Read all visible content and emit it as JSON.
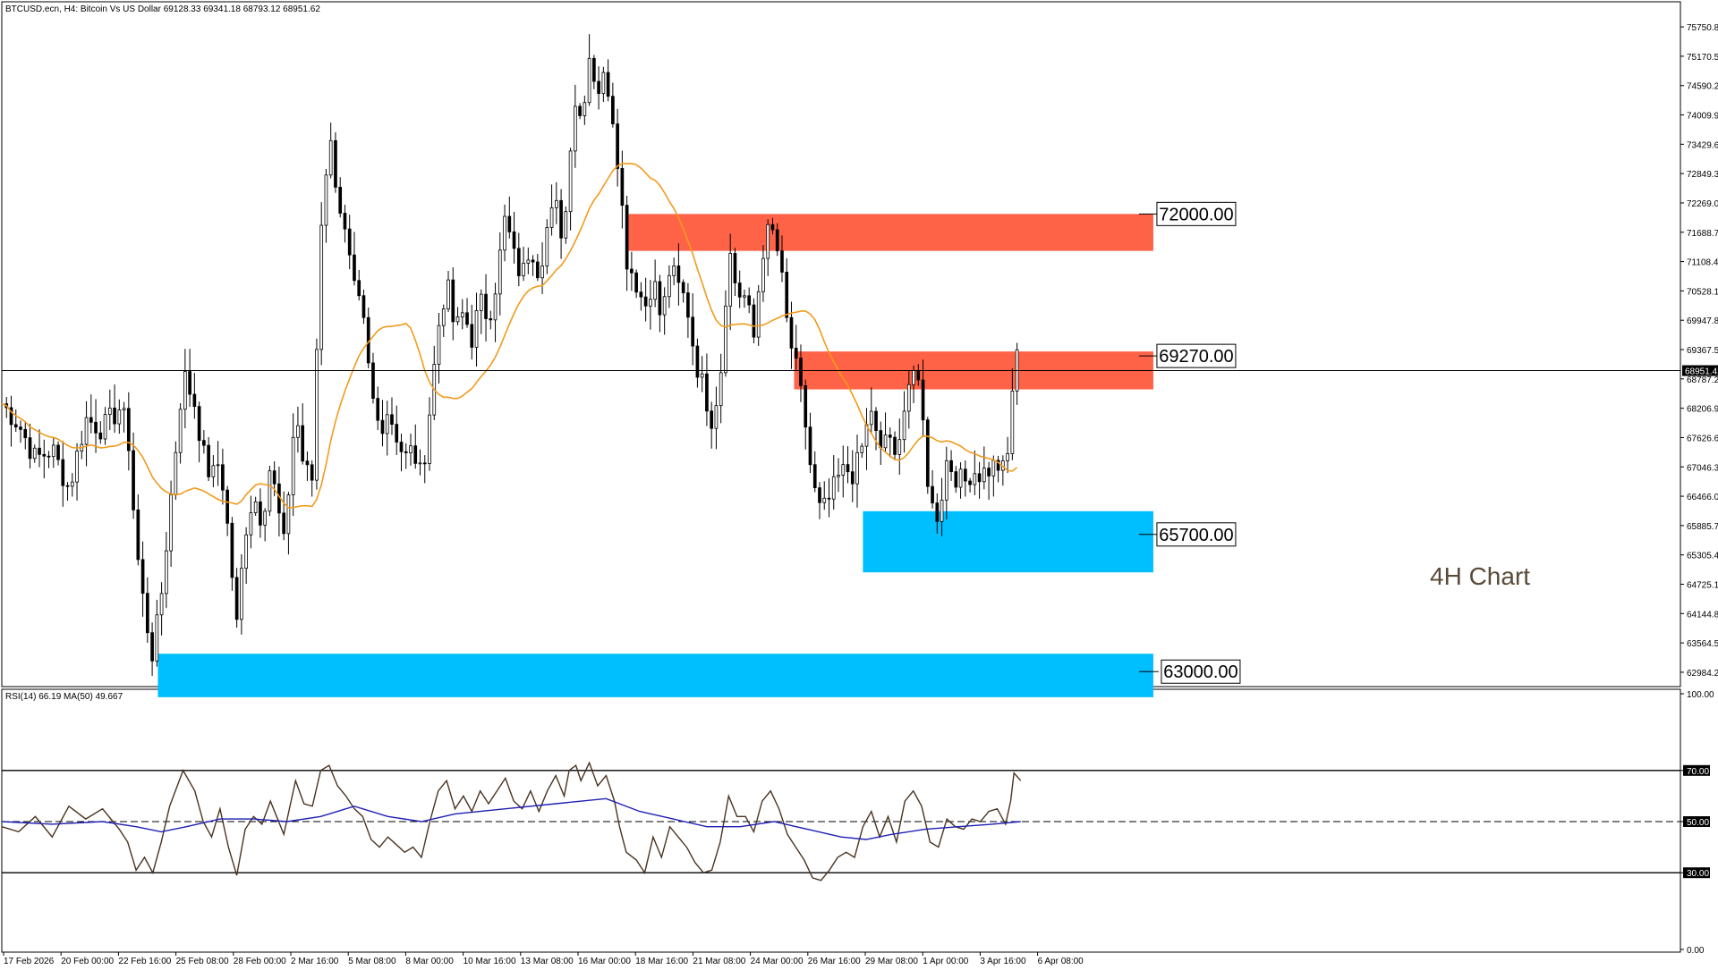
{
  "header": {
    "text": "BTCUSD.ecn, H4:  Bitcoin Vs US Dollar  69128.33 69341.18 68793.12 68951.62"
  },
  "chart_label": "4H Chart",
  "chart_data": [
    {
      "type": "candlestick",
      "symbol": "BTCUSD.ecn",
      "timeframe": "H4",
      "ylim": [
        62700,
        76000
      ],
      "current_price": "68951.42",
      "price_ticks": [
        "75750.80",
        "75170.50",
        "74590.20",
        "74009.90",
        "73429.60",
        "72849.30",
        "72269.00",
        "71688.70",
        "71108.40",
        "70528.10",
        "69947.80",
        "69367.50",
        "68787.20",
        "68206.90",
        "67626.60",
        "67046.30",
        "66466.00",
        "65885.70",
        "65305.40",
        "64725.10",
        "64144.80",
        "63564.50",
        "62984.20"
      ],
      "time_ticks": [
        "17 Feb 2026",
        "20 Feb 00:00",
        "22 Feb 16:00",
        "25 Feb 08:00",
        "28 Feb 00:00",
        "2 Mar 16:00",
        "5 Mar 08:00",
        "8 Mar 00:00",
        "10 Mar 16:00",
        "13 Mar 08:00",
        "16 Mar 00:00",
        "18 Mar 16:00",
        "21 Mar 08:00",
        "24 Mar 00:00",
        "26 Mar 16:00",
        "29 Mar 08:00",
        "1 Apr 00:00",
        "3 Apr 16:00",
        "6 Apr 08:00"
      ],
      "zones": [
        {
          "label": "72000.00",
          "kind": "resistance",
          "color": "#ff6347",
          "top": 72050,
          "bottom": 71320,
          "start": 0.372,
          "end": 0.686
        },
        {
          "label": "69270.00",
          "kind": "resistance",
          "color": "#ff6347",
          "top": 69330,
          "bottom": 68580,
          "start": 0.472,
          "end": 0.686
        },
        {
          "label": "65700.00",
          "kind": "support",
          "color": "#00bfff",
          "top": 66170,
          "bottom": 64960,
          "start": 0.513,
          "end": 0.686
        },
        {
          "label": "63000.00",
          "kind": "support",
          "color": "#00bfff",
          "top": 63350,
          "bottom": 62490,
          "start": 0.093,
          "end": 0.686
        }
      ],
      "close_path": [
        [
          0.0,
          68300
        ],
        [
          0.01,
          67900
        ],
        [
          0.02,
          67200
        ],
        [
          0.03,
          67400
        ],
        [
          0.04,
          66600
        ],
        [
          0.05,
          68000
        ],
        [
          0.06,
          67800
        ],
        [
          0.07,
          68200
        ],
        [
          0.075,
          67800
        ],
        [
          0.08,
          65500
        ],
        [
          0.085,
          64200
        ],
        [
          0.09,
          63300
        ],
        [
          0.095,
          64500
        ],
        [
          0.1,
          66200
        ],
        [
          0.108,
          68900
        ],
        [
          0.115,
          68300
        ],
        [
          0.12,
          67300
        ],
        [
          0.125,
          66800
        ],
        [
          0.13,
          67200
        ],
        [
          0.135,
          65700
        ],
        [
          0.14,
          63900
        ],
        [
          0.145,
          65800
        ],
        [
          0.15,
          66500
        ],
        [
          0.155,
          66000
        ],
        [
          0.16,
          67100
        ],
        [
          0.168,
          65500
        ],
        [
          0.175,
          68200
        ],
        [
          0.18,
          67000
        ],
        [
          0.185,
          66800
        ],
        [
          0.19,
          71800
        ],
        [
          0.195,
          73600
        ],
        [
          0.2,
          72500
        ],
        [
          0.205,
          71500
        ],
        [
          0.21,
          70500
        ],
        [
          0.215,
          70000
        ],
        [
          0.22,
          68500
        ],
        [
          0.225,
          67800
        ],
        [
          0.23,
          68200
        ],
        [
          0.235,
          67700
        ],
        [
          0.24,
          67200
        ],
        [
          0.245,
          67400
        ],
        [
          0.25,
          66800
        ],
        [
          0.255,
          68200
        ],
        [
          0.26,
          69800
        ],
        [
          0.265,
          70700
        ],
        [
          0.27,
          69700
        ],
        [
          0.275,
          70100
        ],
        [
          0.28,
          69600
        ],
        [
          0.285,
          70300
        ],
        [
          0.29,
          70000
        ],
        [
          0.295,
          70800
        ],
        [
          0.3,
          72000
        ],
        [
          0.305,
          71200
        ],
        [
          0.31,
          70800
        ],
        [
          0.315,
          71500
        ],
        [
          0.32,
          70900
        ],
        [
          0.325,
          71800
        ],
        [
          0.33,
          72200
        ],
        [
          0.335,
          71500
        ],
        [
          0.338,
          73300
        ],
        [
          0.342,
          74400
        ],
        [
          0.345,
          73900
        ],
        [
          0.35,
          75200
        ],
        [
          0.355,
          74500
        ],
        [
          0.36,
          74800
        ],
        [
          0.365,
          73800
        ],
        [
          0.368,
          72800
        ],
        [
          0.372,
          71200
        ],
        [
          0.378,
          70700
        ],
        [
          0.383,
          70200
        ],
        [
          0.388,
          70800
        ],
        [
          0.393,
          69900
        ],
        [
          0.398,
          71000
        ],
        [
          0.403,
          70600
        ],
        [
          0.408,
          70300
        ],
        [
          0.413,
          69200
        ],
        [
          0.418,
          68600
        ],
        [
          0.423,
          68000
        ],
        [
          0.428,
          68800
        ],
        [
          0.433,
          71400
        ],
        [
          0.438,
          70500
        ],
        [
          0.443,
          70400
        ],
        [
          0.448,
          69600
        ],
        [
          0.453,
          71300
        ],
        [
          0.458,
          71800
        ],
        [
          0.463,
          71200
        ],
        [
          0.468,
          69800
        ],
        [
          0.473,
          69000
        ],
        [
          0.478,
          68100
        ],
        [
          0.483,
          66700
        ],
        [
          0.488,
          66100
        ],
        [
          0.493,
          66400
        ],
        [
          0.498,
          66800
        ],
        [
          0.503,
          67000
        ],
        [
          0.508,
          66900
        ],
        [
          0.513,
          67500
        ],
        [
          0.518,
          68200
        ],
        [
          0.523,
          67200
        ],
        [
          0.528,
          67900
        ],
        [
          0.533,
          66900
        ],
        [
          0.538,
          68500
        ],
        [
          0.543,
          69000
        ],
        [
          0.548,
          68200
        ],
        [
          0.553,
          66300
        ],
        [
          0.558,
          66100
        ],
        [
          0.563,
          67200
        ],
        [
          0.568,
          66900
        ],
        [
          0.573,
          66700
        ],
        [
          0.578,
          67000
        ],
        [
          0.583,
          66900
        ],
        [
          0.588,
          67000
        ],
        [
          0.593,
          67100
        ],
        [
          0.598,
          66900
        ],
        [
          0.601,
          67800
        ],
        [
          0.603,
          69400
        ],
        [
          0.607,
          68950
        ]
      ],
      "moving_average": "MA(20)"
    },
    {
      "type": "line",
      "indicator": "RSI",
      "header": "RSI(14) 66.19 MA(50) 49.667",
      "ylim": [
        0,
        100
      ],
      "ticks": [
        "100.00",
        "70.00",
        "50.00",
        "30.00",
        "0.00"
      ],
      "levels": [
        70,
        50,
        30
      ],
      "series": [
        {
          "name": "RSI(14)",
          "color": "#4a3320",
          "points": [
            [
              0.0,
              48
            ],
            [
              0.01,
              46
            ],
            [
              0.02,
              52
            ],
            [
              0.03,
              44
            ],
            [
              0.04,
              56
            ],
            [
              0.05,
              51
            ],
            [
              0.06,
              55
            ],
            [
              0.07,
              47
            ],
            [
              0.075,
              42
            ],
            [
              0.08,
              31
            ],
            [
              0.085,
              36
            ],
            [
              0.09,
              30
            ],
            [
              0.095,
              42
            ],
            [
              0.1,
              56
            ],
            [
              0.108,
              70
            ],
            [
              0.115,
              62
            ],
            [
              0.12,
              50
            ],
            [
              0.125,
              44
            ],
            [
              0.13,
              55
            ],
            [
              0.135,
              40
            ],
            [
              0.14,
              29
            ],
            [
              0.145,
              47
            ],
            [
              0.15,
              52
            ],
            [
              0.155,
              49
            ],
            [
              0.16,
              58
            ],
            [
              0.168,
              45
            ],
            [
              0.175,
              66
            ],
            [
              0.18,
              57
            ],
            [
              0.185,
              56
            ],
            [
              0.19,
              70
            ],
            [
              0.195,
              72
            ],
            [
              0.2,
              64
            ],
            [
              0.205,
              60
            ],
            [
              0.21,
              55
            ],
            [
              0.215,
              52
            ],
            [
              0.22,
              43
            ],
            [
              0.225,
              40
            ],
            [
              0.23,
              44
            ],
            [
              0.235,
              41
            ],
            [
              0.24,
              38
            ],
            [
              0.245,
              40
            ],
            [
              0.25,
              36
            ],
            [
              0.255,
              50
            ],
            [
              0.26,
              62
            ],
            [
              0.265,
              66
            ],
            [
              0.27,
              55
            ],
            [
              0.275,
              60
            ],
            [
              0.28,
              54
            ],
            [
              0.285,
              62
            ],
            [
              0.29,
              57
            ],
            [
              0.295,
              62
            ],
            [
              0.3,
              67
            ],
            [
              0.305,
              58
            ],
            [
              0.31,
              55
            ],
            [
              0.315,
              62
            ],
            [
              0.32,
              54
            ],
            [
              0.325,
              62
            ],
            [
              0.33,
              68
            ],
            [
              0.335,
              60
            ],
            [
              0.338,
              70
            ],
            [
              0.342,
              72
            ],
            [
              0.345,
              66
            ],
            [
              0.35,
              73
            ],
            [
              0.355,
              64
            ],
            [
              0.36,
              68
            ],
            [
              0.365,
              58
            ],
            [
              0.368,
              48
            ],
            [
              0.372,
              38
            ],
            [
              0.378,
              35
            ],
            [
              0.383,
              30
            ],
            [
              0.388,
              44
            ],
            [
              0.393,
              36
            ],
            [
              0.398,
              48
            ],
            [
              0.403,
              44
            ],
            [
              0.408,
              40
            ],
            [
              0.413,
              34
            ],
            [
              0.418,
              30
            ],
            [
              0.423,
              31
            ],
            [
              0.428,
              42
            ],
            [
              0.433,
              60
            ],
            [
              0.438,
              52
            ],
            [
              0.443,
              52
            ],
            [
              0.448,
              46
            ],
            [
              0.453,
              58
            ],
            [
              0.458,
              62
            ],
            [
              0.463,
              55
            ],
            [
              0.468,
              45
            ],
            [
              0.473,
              40
            ],
            [
              0.478,
              35
            ],
            [
              0.483,
              28
            ],
            [
              0.488,
              27
            ],
            [
              0.493,
              31
            ],
            [
              0.498,
              36
            ],
            [
              0.503,
              38
            ],
            [
              0.508,
              36
            ],
            [
              0.513,
              48
            ],
            [
              0.518,
              54
            ],
            [
              0.523,
              44
            ],
            [
              0.528,
              52
            ],
            [
              0.533,
              42
            ],
            [
              0.538,
              58
            ],
            [
              0.543,
              62
            ],
            [
              0.548,
              56
            ],
            [
              0.553,
              42
            ],
            [
              0.558,
              40
            ],
            [
              0.563,
              51
            ],
            [
              0.568,
              48
            ],
            [
              0.573,
              47
            ],
            [
              0.578,
              51
            ],
            [
              0.583,
              50
            ],
            [
              0.588,
              54
            ],
            [
              0.593,
              55
            ],
            [
              0.598,
              49
            ],
            [
              0.601,
              58
            ],
            [
              0.603,
              69
            ],
            [
              0.607,
              66
            ]
          ]
        },
        {
          "name": "MA(50)",
          "color": "#1f1fb4",
          "points": [
            [
              0.0,
              50
            ],
            [
              0.03,
              49
            ],
            [
              0.06,
              50
            ],
            [
              0.08,
              48
            ],
            [
              0.095,
              46
            ],
            [
              0.11,
              48
            ],
            [
              0.13,
              51
            ],
            [
              0.15,
              51
            ],
            [
              0.17,
              50
            ],
            [
              0.19,
              52
            ],
            [
              0.21,
              56
            ],
            [
              0.23,
              52
            ],
            [
              0.25,
              50
            ],
            [
              0.27,
              53
            ],
            [
              0.3,
              55
            ],
            [
              0.33,
              57
            ],
            [
              0.36,
              59
            ],
            [
              0.38,
              54
            ],
            [
              0.4,
              51
            ],
            [
              0.42,
              48
            ],
            [
              0.44,
              48
            ],
            [
              0.46,
              50
            ],
            [
              0.48,
              47
            ],
            [
              0.5,
              44
            ],
            [
              0.515,
              43
            ],
            [
              0.53,
              45
            ],
            [
              0.55,
              47
            ],
            [
              0.57,
              48
            ],
            [
              0.59,
              49
            ],
            [
              0.607,
              50
            ]
          ]
        }
      ]
    }
  ]
}
